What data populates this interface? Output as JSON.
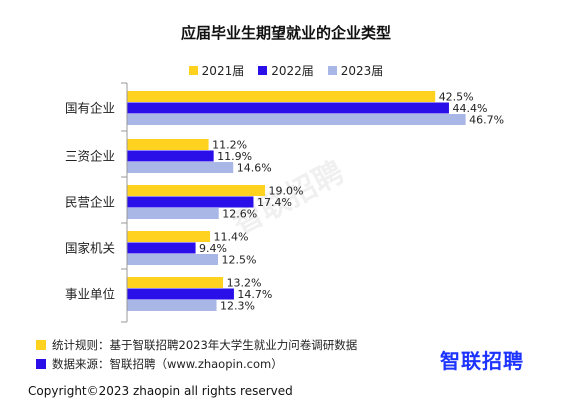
{
  "chart_data": {
    "type": "bar",
    "orientation": "horizontal",
    "title": "应届毕业生期望就业的企业类型",
    "categories": [
      "国有企业",
      "三资企业",
      "民营企业",
      "国家机关",
      "事业单位"
    ],
    "series": [
      {
        "name": "2021届",
        "color": "#ffd21f",
        "values": [
          42.5,
          11.2,
          19.0,
          11.4,
          13.2
        ]
      },
      {
        "name": "2022届",
        "color": "#2a0fe8",
        "values": [
          44.4,
          11.9,
          17.4,
          9.4,
          14.7
        ]
      },
      {
        "name": "2023届",
        "color": "#a8b7e6",
        "values": [
          46.7,
          14.6,
          12.6,
          12.5,
          12.3
        ]
      }
    ],
    "value_suffix": "%",
    "legend_position": "top"
  },
  "watermark": "智联招聘",
  "footer": {
    "rule_label": "统计规则：基于智联招聘2023年大学生就业力问卷调研数据",
    "rule_color": "#ffd21f",
    "source_label": "数据来源：智联招聘（www.zhaopin.com）",
    "source_color": "#2a0fe8"
  },
  "brand": "智联招聘",
  "copyright": "Copyright©2023 zhaopin all rights reserved"
}
